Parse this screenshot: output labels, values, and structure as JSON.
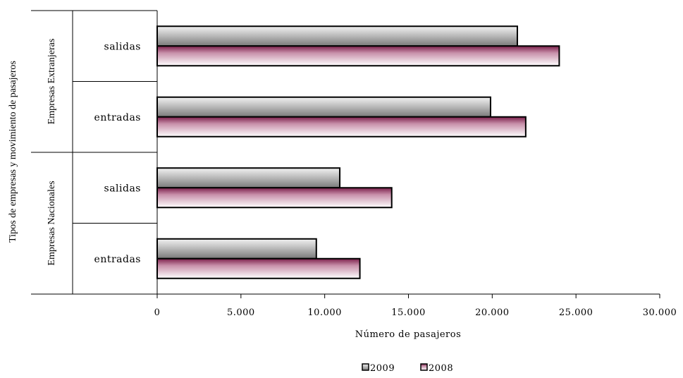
{
  "chart_data": {
    "type": "bar",
    "orientation": "horizontal",
    "title": "",
    "xlabel": "Número de pasajeros",
    "ylabel": "Tipos de empresas y movimiento de pasajeros",
    "xlim": [
      0,
      30000
    ],
    "xticks": [
      0,
      5000,
      10000,
      15000,
      20000,
      25000,
      30000
    ],
    "xtick_labels": [
      "0",
      "5.000",
      "10.000",
      "15.000",
      "20.000",
      "25.000",
      "30.000"
    ],
    "groups": [
      {
        "label": "Empresas Extranjeras",
        "categories": [
          "salidas",
          "entradas"
        ]
      },
      {
        "label": "Empresas Nacionales",
        "categories": [
          "salidas",
          "entradas"
        ]
      }
    ],
    "categories": [
      "salidas",
      "entradas",
      "salidas",
      "entradas"
    ],
    "series": [
      {
        "name": "2009",
        "values": [
          21500,
          19900,
          10900,
          9500
        ],
        "color": "#9a9a9a"
      },
      {
        "name": "2008",
        "values": [
          24000,
          22000,
          14000,
          12100
        ],
        "color": "#8a2a55"
      }
    ],
    "grid": false,
    "legend": "bottom-center"
  }
}
